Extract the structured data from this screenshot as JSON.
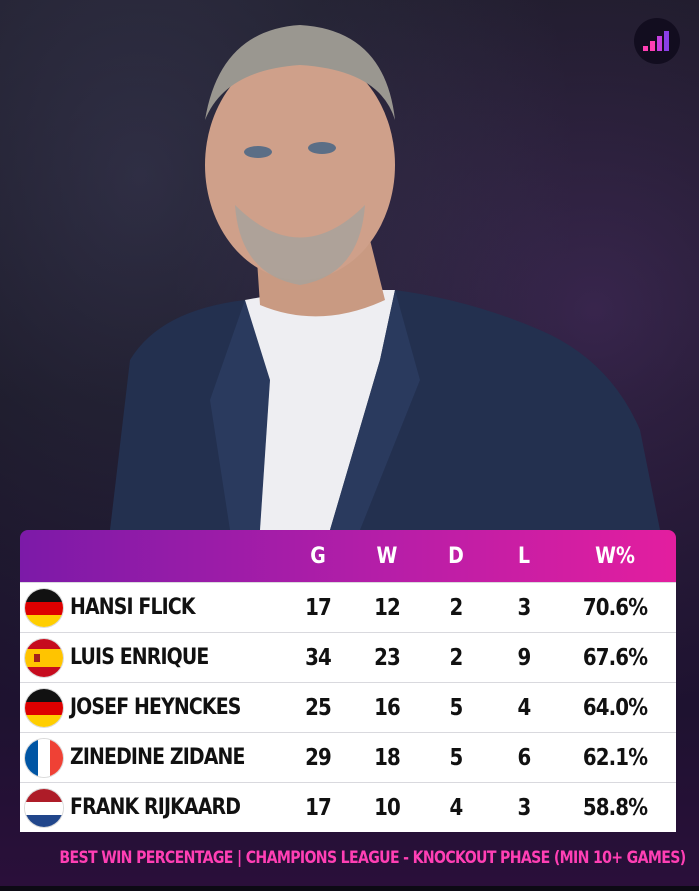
{
  "header": {
    "columns": [
      "G",
      "W",
      "D",
      "L",
      "W%"
    ]
  },
  "rows": [
    {
      "flag_icon": "germany-flag-icon",
      "name": "HANSI FLICK",
      "g": "17",
      "w": "12",
      "d": "2",
      "l": "3",
      "pct": "70.6%"
    },
    {
      "flag_icon": "spain-flag-icon",
      "name": "LUIS ENRIQUE",
      "g": "34",
      "w": "23",
      "d": "2",
      "l": "9",
      "pct": "67.6%"
    },
    {
      "flag_icon": "germany-flag-icon",
      "name": "JOSEF HEYNCKES",
      "g": "25",
      "w": "16",
      "d": "5",
      "l": "4",
      "pct": "64.0%"
    },
    {
      "flag_icon": "france-flag-icon",
      "name": "ZINEDINE ZIDANE",
      "g": "29",
      "w": "18",
      "d": "5",
      "l": "6",
      "pct": "62.1%"
    },
    {
      "flag_icon": "netherlands-flag-icon",
      "name": "FRANK RIJKAARD",
      "g": "17",
      "w": "10",
      "d": "4",
      "l": "3",
      "pct": "58.8%"
    }
  ],
  "footer": {
    "caption": "BEST WIN PERCENTAGE | CHAMPIONS LEAGUE - KNOCKOUT PHASE (MIN 10+ GAMES)"
  },
  "colors": {
    "header_gradient_start": "#7c1aa8",
    "header_gradient_end": "#e31e9f",
    "caption": "#ff3fb4",
    "row_background": "#ffffff"
  },
  "icons": {
    "logo": "bar-steps-logo-icon",
    "photo": "coach-portrait-photo"
  }
}
